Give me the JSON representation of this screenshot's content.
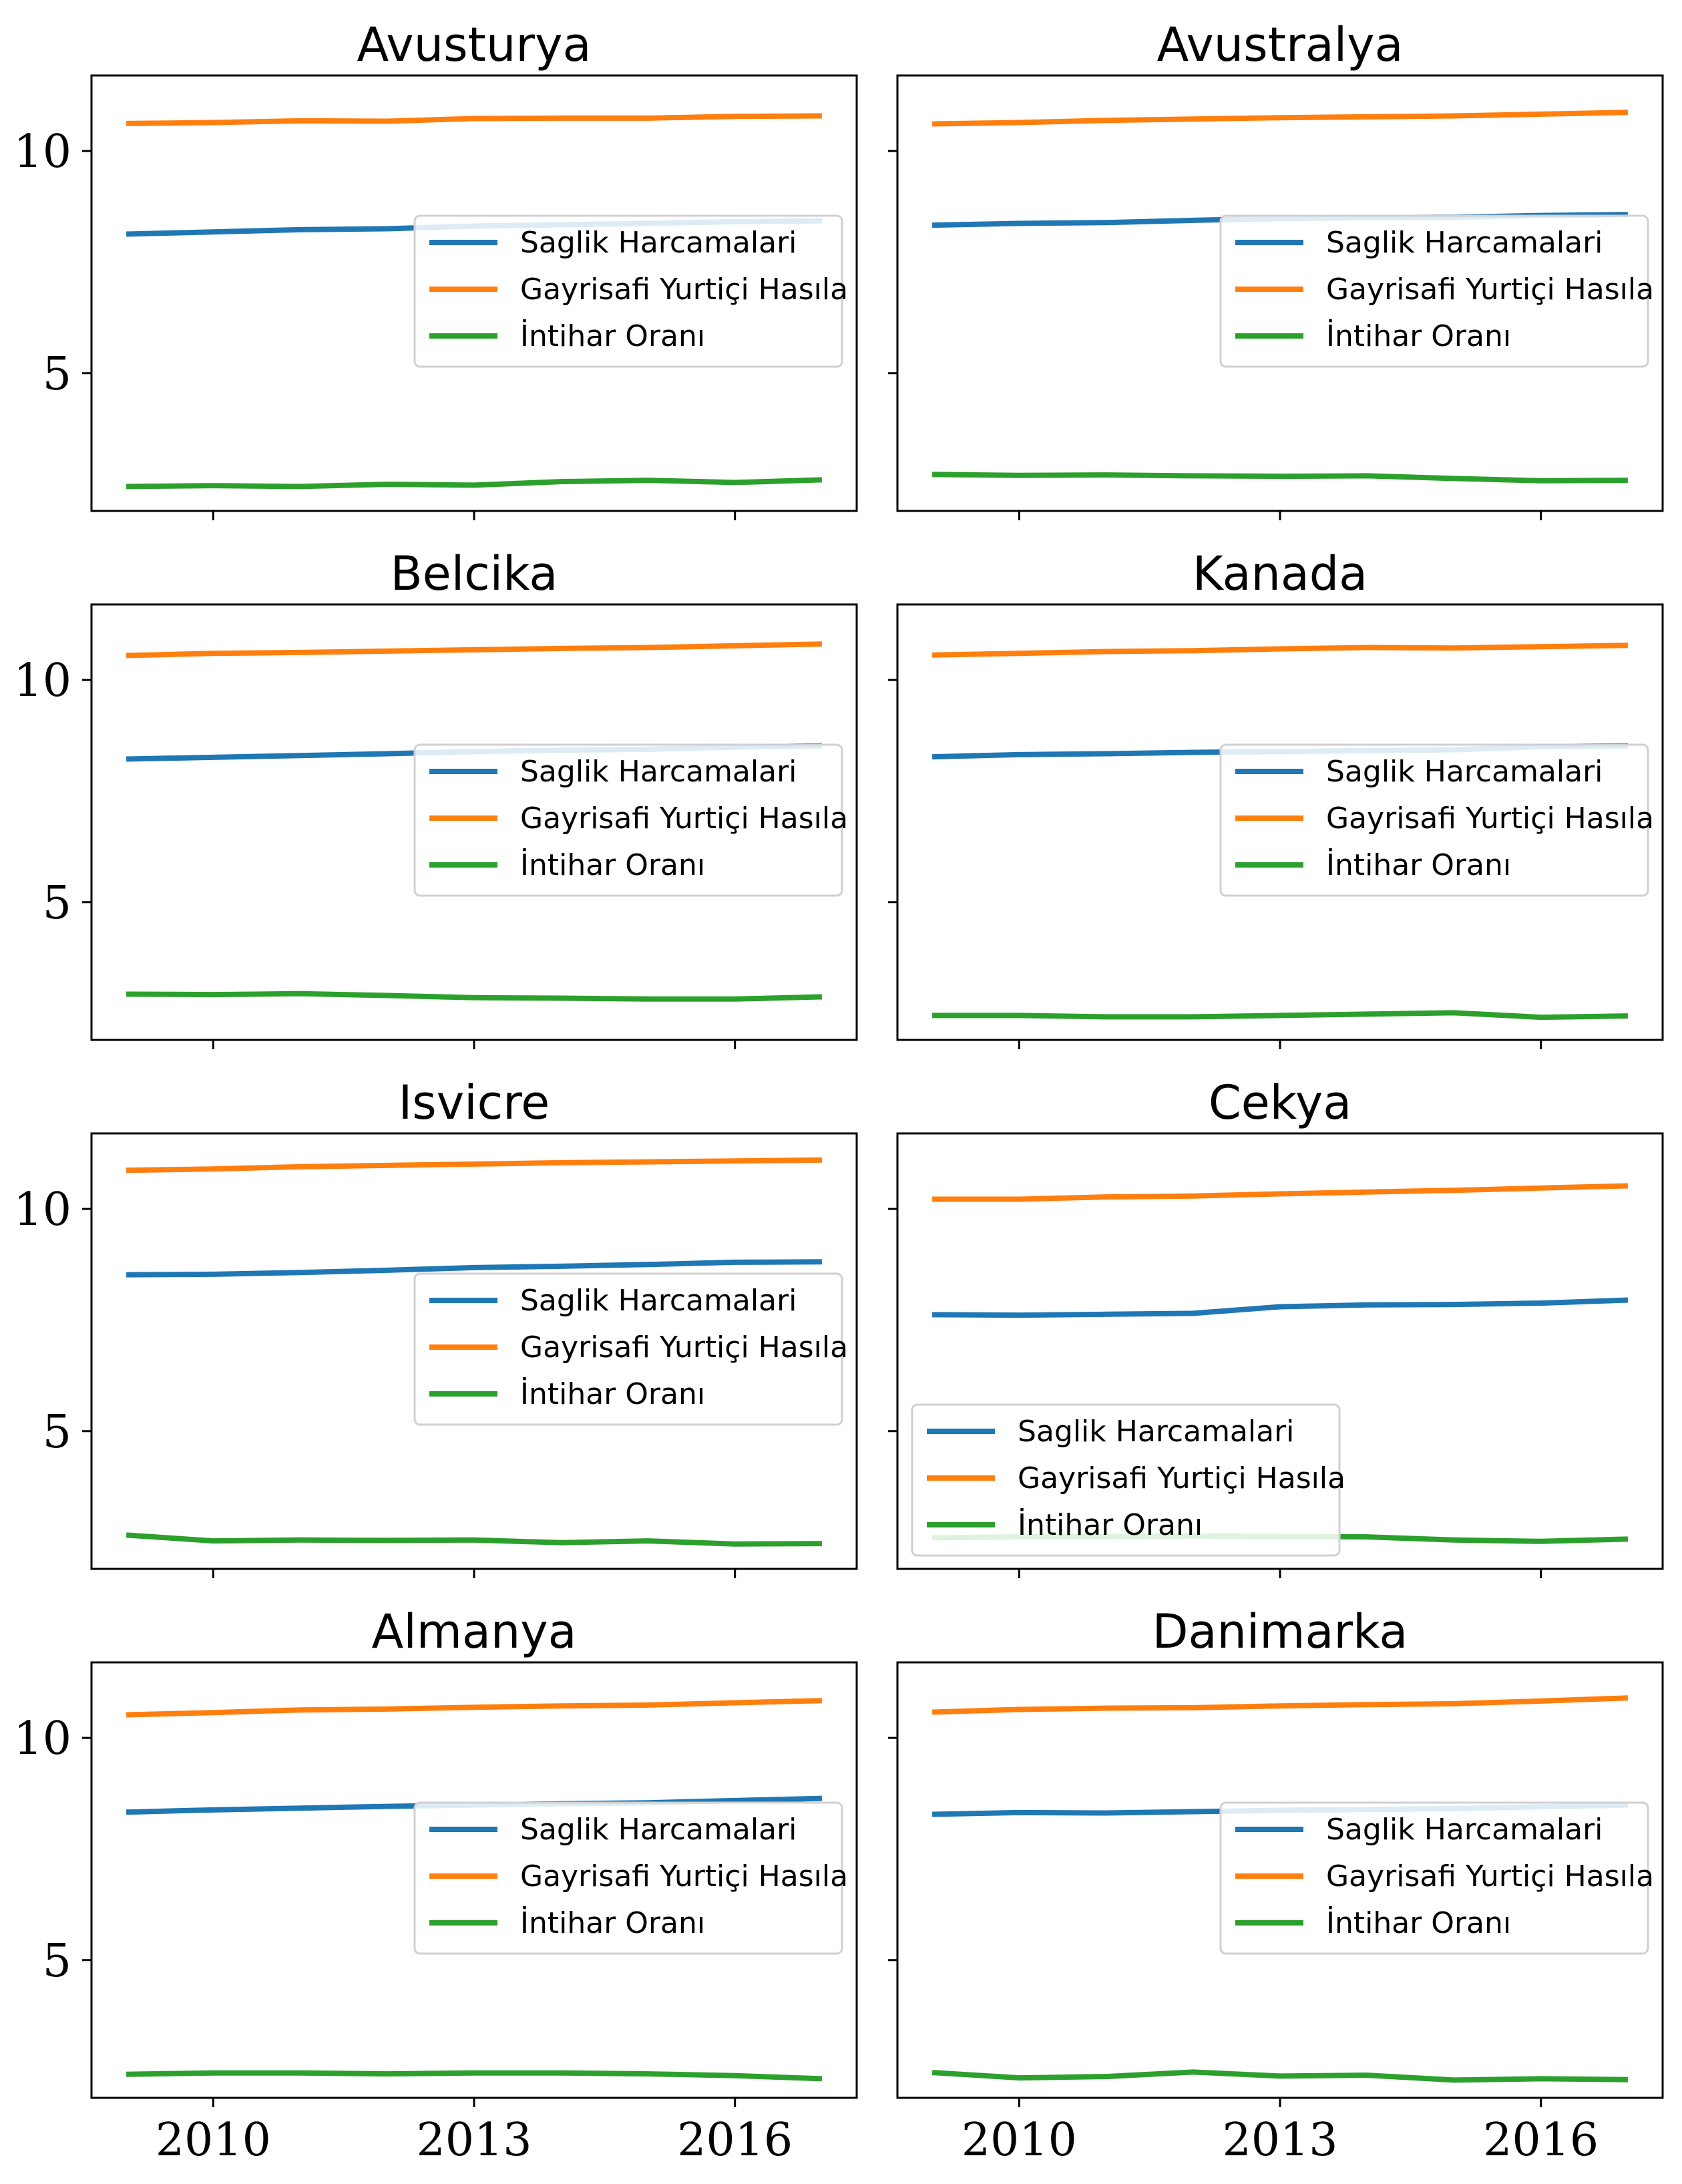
{
  "colors": {
    "series_0": "#1f77b4",
    "series_1": "#ff7f0e",
    "series_2": "#2ca02c"
  },
  "chart_data": [
    {
      "type": "line",
      "title": "Avusturya",
      "x": [
        2009,
        2010,
        2011,
        2012,
        2013,
        2014,
        2015,
        2016,
        2017
      ],
      "ylim": [
        1.9,
        11.7
      ],
      "xticks": [
        "2010",
        "2013",
        "2016"
      ],
      "yticks": [
        "5",
        "10"
      ],
      "legend": "center-right",
      "series": [
        {
          "name": "Saglik Harcamalari",
          "values": [
            8.13,
            8.18,
            8.23,
            8.25,
            8.31,
            8.34,
            8.37,
            8.41,
            8.43
          ]
        },
        {
          "name": "Gayrisafi Yurtiçi Hasıla",
          "values": [
            10.62,
            10.64,
            10.68,
            10.67,
            10.73,
            10.74,
            10.74,
            10.78,
            10.79
          ]
        },
        {
          "name": "İntihar Oranı",
          "values": [
            2.45,
            2.47,
            2.45,
            2.5,
            2.48,
            2.56,
            2.59,
            2.54,
            2.6
          ]
        }
      ]
    },
    {
      "type": "line",
      "title": "Avustralya",
      "x": [
        2009,
        2010,
        2011,
        2012,
        2013,
        2014,
        2015,
        2016,
        2017
      ],
      "ylim": [
        1.9,
        11.7
      ],
      "xticks": [
        "2010",
        "2013",
        "2016"
      ],
      "yticks": [
        "5",
        "10"
      ],
      "legend": "center-right",
      "series": [
        {
          "name": "Saglik Harcamalari",
          "values": [
            8.33,
            8.37,
            8.39,
            8.44,
            8.48,
            8.5,
            8.51,
            8.55,
            8.57
          ]
        },
        {
          "name": "Gayrisafi Yurtiçi Hasıla",
          "values": [
            10.61,
            10.64,
            10.69,
            10.72,
            10.75,
            10.77,
            10.79,
            10.83,
            10.87
          ]
        },
        {
          "name": "İntihar Oranı",
          "values": [
            2.72,
            2.7,
            2.71,
            2.69,
            2.68,
            2.69,
            2.63,
            2.58,
            2.59
          ]
        }
      ]
    },
    {
      "type": "line",
      "title": "Belcika",
      "x": [
        2009,
        2010,
        2011,
        2012,
        2013,
        2014,
        2015,
        2016,
        2017
      ],
      "ylim": [
        1.9,
        11.7
      ],
      "xticks": [
        "2010",
        "2013",
        "2016"
      ],
      "yticks": [
        "5",
        "10"
      ],
      "legend": "center-right",
      "series": [
        {
          "name": "Saglik Harcamalari",
          "values": [
            8.22,
            8.26,
            8.3,
            8.34,
            8.39,
            8.42,
            8.44,
            8.49,
            8.52
          ]
        },
        {
          "name": "Gayrisafi Yurtiçi Hasıla",
          "values": [
            10.55,
            10.6,
            10.62,
            10.65,
            10.68,
            10.71,
            10.73,
            10.77,
            10.81
          ]
        },
        {
          "name": "İntihar Oranı",
          "values": [
            2.93,
            2.92,
            2.94,
            2.9,
            2.85,
            2.84,
            2.82,
            2.82,
            2.87
          ]
        }
      ]
    },
    {
      "type": "line",
      "title": "Kanada",
      "x": [
        2009,
        2010,
        2011,
        2012,
        2013,
        2014,
        2015,
        2016,
        2017
      ],
      "ylim": [
        1.9,
        11.7
      ],
      "xticks": [
        "2010",
        "2013",
        "2016"
      ],
      "yticks": [
        "5",
        "10"
      ],
      "legend": "center-right",
      "series": [
        {
          "name": "Saglik Harcamalari",
          "values": [
            8.27,
            8.32,
            8.34,
            8.37,
            8.39,
            8.41,
            8.43,
            8.5,
            8.52
          ]
        },
        {
          "name": "Gayrisafi Yurtiçi Hasıla",
          "values": [
            10.56,
            10.6,
            10.64,
            10.66,
            10.7,
            10.73,
            10.72,
            10.75,
            10.78
          ]
        },
        {
          "name": "İntihar Oranı",
          "values": [
            2.45,
            2.45,
            2.42,
            2.42,
            2.45,
            2.48,
            2.51,
            2.41,
            2.44
          ]
        }
      ]
    },
    {
      "type": "line",
      "title": "Isvicre",
      "x": [
        2009,
        2010,
        2011,
        2012,
        2013,
        2014,
        2015,
        2016,
        2017
      ],
      "ylim": [
        1.9,
        11.7
      ],
      "xticks": [
        "2010",
        "2013",
        "2016"
      ],
      "yticks": [
        "5",
        "10"
      ],
      "legend": "center-right",
      "series": [
        {
          "name": "Saglik Harcamalari",
          "values": [
            8.52,
            8.53,
            8.57,
            8.62,
            8.68,
            8.71,
            8.75,
            8.8,
            8.81
          ]
        },
        {
          "name": "Gayrisafi Yurtiçi Hasıla",
          "values": [
            10.87,
            10.9,
            10.95,
            10.98,
            11.01,
            11.04,
            11.06,
            11.08,
            11.1
          ]
        },
        {
          "name": "İntihar Oranı",
          "values": [
            2.66,
            2.53,
            2.55,
            2.54,
            2.55,
            2.49,
            2.53,
            2.46,
            2.47
          ]
        }
      ]
    },
    {
      "type": "line",
      "title": "Cekya",
      "x": [
        2009,
        2010,
        2011,
        2012,
        2013,
        2014,
        2015,
        2016,
        2017
      ],
      "ylim": [
        1.9,
        11.7
      ],
      "xticks": [
        "2010",
        "2013",
        "2016"
      ],
      "yticks": [
        "5",
        "10"
      ],
      "legend": "lower-left",
      "series": [
        {
          "name": "Saglik Harcamalari",
          "values": [
            7.62,
            7.61,
            7.63,
            7.65,
            7.8,
            7.84,
            7.85,
            7.88,
            7.95
          ]
        },
        {
          "name": "Gayrisafi Yurtiçi Hasıla",
          "values": [
            10.22,
            10.22,
            10.27,
            10.29,
            10.34,
            10.38,
            10.42,
            10.47,
            10.52
          ]
        },
        {
          "name": "İntihar Oranı",
          "values": [
            2.6,
            2.62,
            2.63,
            2.64,
            2.63,
            2.62,
            2.55,
            2.52,
            2.57
          ]
        }
      ]
    },
    {
      "type": "line",
      "title": "Almanya",
      "x": [
        2009,
        2010,
        2011,
        2012,
        2013,
        2014,
        2015,
        2016,
        2017
      ],
      "ylim": [
        1.9,
        11.7
      ],
      "xticks": [
        "2010",
        "2013",
        "2016"
      ],
      "yticks": [
        "5",
        "10"
      ],
      "legend": "center-right",
      "series": [
        {
          "name": "Saglik Harcamalari",
          "values": [
            8.33,
            8.38,
            8.42,
            8.46,
            8.49,
            8.52,
            8.54,
            8.59,
            8.64
          ]
        },
        {
          "name": "Gayrisafi Yurtiçi Hasıla",
          "values": [
            10.52,
            10.57,
            10.63,
            10.65,
            10.69,
            10.72,
            10.74,
            10.79,
            10.84
          ]
        },
        {
          "name": "İntihar Oranı",
          "values": [
            2.43,
            2.46,
            2.46,
            2.44,
            2.46,
            2.46,
            2.44,
            2.4,
            2.33
          ]
        }
      ]
    },
    {
      "type": "line",
      "title": "Danimarka",
      "x": [
        2009,
        2010,
        2011,
        2012,
        2013,
        2014,
        2015,
        2016,
        2017
      ],
      "ylim": [
        1.9,
        11.7
      ],
      "xticks": [
        "2010",
        "2013",
        "2016"
      ],
      "yticks": [
        "5",
        "10"
      ],
      "legend": "center-right",
      "series": [
        {
          "name": "Saglik Harcamalari",
          "values": [
            8.28,
            8.32,
            8.31,
            8.34,
            8.37,
            8.39,
            8.41,
            8.45,
            8.49
          ]
        },
        {
          "name": "Gayrisafi Yurtiçi Hasıla",
          "values": [
            10.58,
            10.64,
            10.67,
            10.68,
            10.72,
            10.75,
            10.77,
            10.83,
            10.9
          ]
        },
        {
          "name": "İntihar Oranı",
          "values": [
            2.47,
            2.35,
            2.38,
            2.48,
            2.39,
            2.41,
            2.3,
            2.33,
            2.31
          ]
        }
      ]
    }
  ]
}
